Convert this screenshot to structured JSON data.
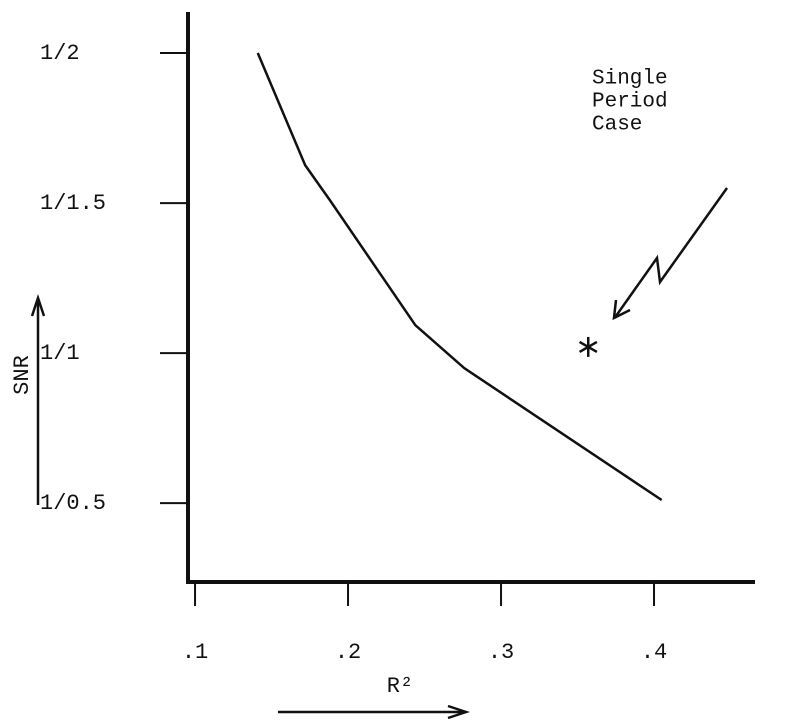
{
  "chart_data": {
    "type": "line",
    "y_label": "SNR",
    "x_label": "R²",
    "x": [
      0.141,
      0.172,
      0.188,
      0.244,
      0.276,
      0.405
    ],
    "series": [
      {
        "color": "#111111",
        "values": [
          0.5,
          0.615,
          0.662,
          0.915,
          1.053,
          1.96
        ]
      }
    ],
    "xlim": [
      0.0954,
      0.466
    ],
    "xticks": [
      {
        "value": 0.1,
        "label": ".1"
      },
      {
        "value": 0.2,
        "label": ".2"
      },
      {
        "value": 0.3,
        "label": ".3"
      },
      {
        "value": 0.4,
        "label": ".4"
      }
    ],
    "ylim": [
      4.22,
      0.468
    ],
    "yscale": "reciprocal",
    "yticks": [
      {
        "value": 0.5,
        "label": "1/2"
      },
      {
        "value": 0.6667,
        "label": "1/1.5"
      },
      {
        "value": 1,
        "label": "1/1"
      },
      {
        "value": 2,
        "label": "1/0.5"
      }
    ],
    "grid": false,
    "marker": {
      "x": 0.357,
      "y": 0.98
    },
    "annotation": [
      "Single",
      "Period",
      "Case"
    ]
  }
}
